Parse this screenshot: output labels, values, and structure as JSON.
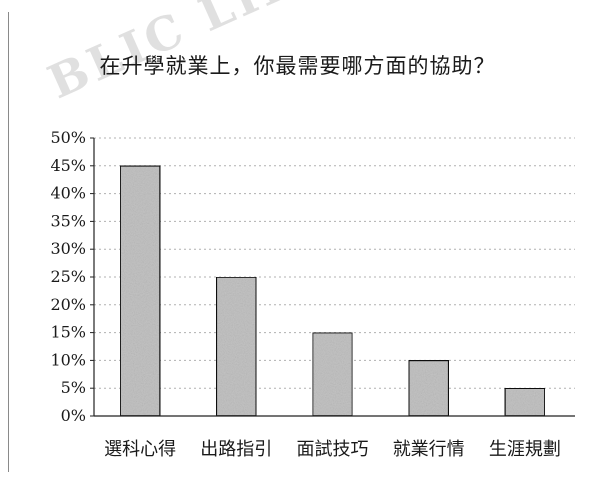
{
  "chart_data": {
    "type": "bar",
    "title": "在升學就業上，你最需要哪方面的協助？",
    "categories": [
      "選科心得",
      "出路指引",
      "面試技巧",
      "就業行情",
      "生涯規劃"
    ],
    "values": [
      45,
      25,
      15,
      10,
      5
    ],
    "value_unit": "%",
    "ylim": [
      0,
      50
    ],
    "yticks": [
      "50%",
      "45%",
      "40%",
      "35%",
      "30%",
      "25%",
      "20%",
      "15%",
      "10%",
      "5%",
      "0%"
    ],
    "xlabel": "",
    "ylabel": "",
    "grid": true,
    "legend": "none"
  },
  "watermark": {
    "text": "BLIC LIBRAR"
  },
  "colors": {
    "bar_fill": "#c4c4c4",
    "bar_stroke": "#111111",
    "grid": "#b0b0b0",
    "axis": "#222222"
  }
}
